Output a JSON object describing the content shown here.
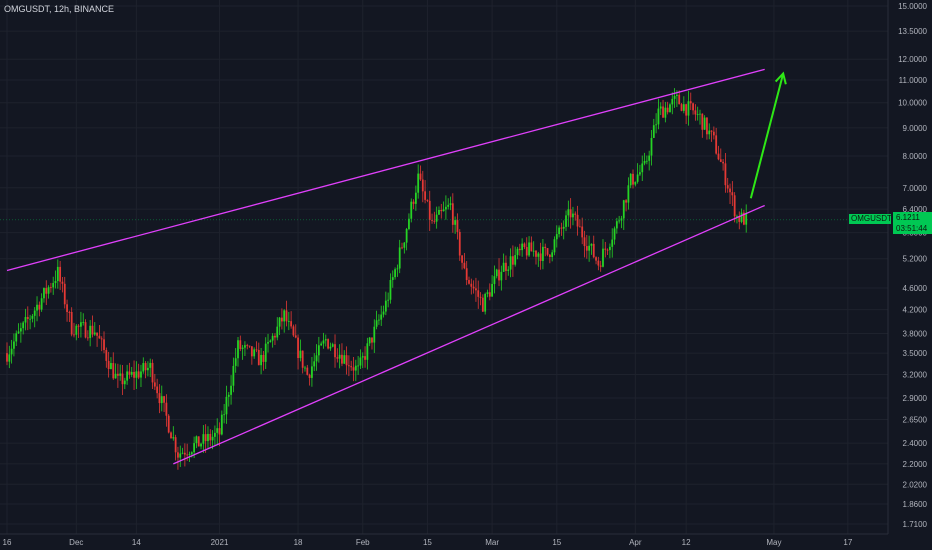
{
  "header": {
    "symbol_label": "OMGUSDT, 12h, BINANCE"
  },
  "price_tag": {
    "name": "OMGUSDT",
    "value": "6.1211",
    "countdown": "03:51:44"
  },
  "colors": {
    "background": "#131722",
    "up": "#26d425",
    "down": "#e53935",
    "trendline": "#e040fb",
    "arrow": "#2ee816",
    "tag": "#00c853",
    "axis_text": "#b2b5be"
  },
  "chart_data": {
    "type": "candlestick",
    "title": "",
    "xlabel": "",
    "ylabel": "",
    "y_scale": "log",
    "ylim": [
      1.66,
      15.2
    ],
    "y_ticks": [
      "15.0000",
      "13.5000",
      "12.0000",
      "11.0000",
      "10.0000",
      "9.0000",
      "8.0000",
      "7.0000",
      "6.4000",
      "5.8000",
      "5.2000",
      "4.6000",
      "4.2000",
      "3.8000",
      "3.5000",
      "3.2000",
      "2.9000",
      "2.6500",
      "2.4000",
      "2.2000",
      "2.0200",
      "1.8600",
      "1.7100"
    ],
    "x_ticks": [
      "16",
      "Dec",
      "14",
      "2021",
      "18",
      "Feb",
      "15",
      "Mar",
      "15",
      "Apr",
      "12",
      "May",
      "17"
    ],
    "grid": true,
    "price_anchors": [
      [
        "2020-11-16",
        3.5
      ],
      [
        "2020-11-27",
        4.9
      ],
      [
        "2020-11-30",
        3.9
      ],
      [
        "2020-12-05",
        3.85
      ],
      [
        "2020-12-10",
        3.1
      ],
      [
        "2020-12-17",
        3.3
      ],
      [
        "2020-12-23",
        2.3
      ],
      [
        "2021-01-01",
        2.5
      ],
      [
        "2021-01-05",
        3.6
      ],
      [
        "2021-01-10",
        3.4
      ],
      [
        "2021-01-15",
        4.1
      ],
      [
        "2021-01-20",
        3.2
      ],
      [
        "2021-01-24",
        3.7
      ],
      [
        "2021-01-31",
        3.25
      ],
      [
        "2021-02-06",
        4.3
      ],
      [
        "2021-02-10",
        5.7
      ],
      [
        "2021-02-13",
        7.3
      ],
      [
        "2021-02-16",
        6.0
      ],
      [
        "2021-02-20",
        6.5
      ],
      [
        "2021-02-23",
        4.9
      ],
      [
        "2021-02-27",
        4.3
      ],
      [
        "2021-03-03",
        5.0
      ],
      [
        "2021-03-08",
        5.4
      ],
      [
        "2021-03-13",
        5.3
      ],
      [
        "2021-03-18",
        6.3
      ],
      [
        "2021-03-24",
        5.1
      ],
      [
        "2021-03-28",
        6.0
      ],
      [
        "2021-03-31",
        7.2
      ],
      [
        "2021-04-03",
        7.6
      ],
      [
        "2021-04-06",
        9.6
      ],
      [
        "2021-04-10",
        10.1
      ],
      [
        "2021-04-15",
        9.4
      ],
      [
        "2021-04-18",
        8.5
      ],
      [
        "2021-04-21",
        7.1
      ],
      [
        "2021-04-23",
        6.2
      ],
      [
        "2021-04-25",
        6.12
      ]
    ],
    "trendlines": [
      {
        "name": "",
        "points": [
          [
            "2020-11-16",
            4.95
          ],
          [
            "2021-04-29",
            11.5
          ]
        ]
      },
      {
        "name": "",
        "points": [
          [
            "2020-12-22",
            2.2
          ],
          [
            "2021-04-29",
            6.5
          ]
        ]
      }
    ],
    "arrow": {
      "from": [
        "2021-04-26",
        6.7
      ],
      "to": [
        "2021-05-03",
        11.3
      ]
    }
  }
}
